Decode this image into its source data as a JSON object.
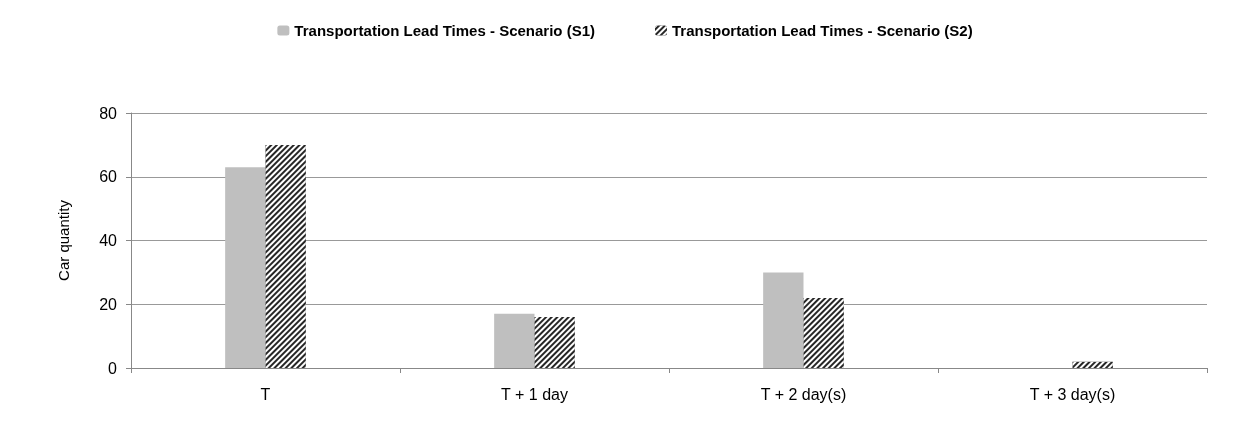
{
  "chart_data": {
    "type": "bar",
    "ylabel": "Car quantity",
    "categories": [
      "T",
      "T + 1 day",
      "T + 2 day(s)",
      "T + 3 day(s)"
    ],
    "series": [
      {
        "name": "Transportation Lead Times - Scenario (S1)",
        "color": "#bfbfbf",
        "values": [
          63,
          17,
          30,
          0
        ]
      },
      {
        "name": "Transportation Lead Times - Scenario (S2)",
        "color": "#262626",
        "values": [
          70,
          16,
          22,
          2
        ]
      }
    ],
    "ylim": [
      0,
      80
    ],
    "yticks": [
      0,
      20,
      40,
      60,
      80
    ],
    "grid": "y",
    "legend": "top"
  }
}
